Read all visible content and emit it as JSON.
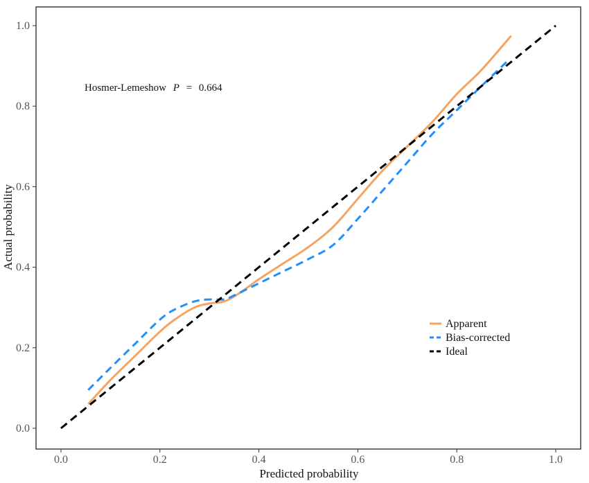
{
  "chart_data": {
    "type": "line",
    "xlabel": "Predicted probability",
    "ylabel": "Actual probability",
    "xlim": [
      0,
      1
    ],
    "ylim": [
      0,
      1
    ],
    "xticks": [
      "0.0",
      "0.2",
      "0.4",
      "0.6",
      "0.8",
      "1.0"
    ],
    "yticks": [
      "0.0",
      "0.2",
      "0.4",
      "0.6",
      "0.8",
      "1.0"
    ],
    "grid": false,
    "legend_position": "bottom-right",
    "annotation": {
      "prefix": "Hosmer-Lemeshow",
      "symbol": "P",
      "equals": "=",
      "value": "0.664"
    },
    "series": [
      {
        "name": "Apparent",
        "color": "#F4A460",
        "dash": "solid",
        "x": [
          0.055,
          0.1,
          0.15,
          0.2,
          0.23,
          0.27,
          0.3,
          0.33,
          0.36,
          0.4,
          0.45,
          0.5,
          0.55,
          0.6,
          0.65,
          0.7,
          0.75,
          0.8,
          0.85,
          0.91
        ],
        "y": [
          0.06,
          0.12,
          0.18,
          0.24,
          0.27,
          0.3,
          0.31,
          0.315,
          0.335,
          0.37,
          0.41,
          0.45,
          0.5,
          0.57,
          0.64,
          0.7,
          0.76,
          0.83,
          0.89,
          0.975
        ]
      },
      {
        "name": "Bias-corrected",
        "color": "#1E90FF",
        "dash": "dashed",
        "x": [
          0.055,
          0.1,
          0.15,
          0.2,
          0.23,
          0.27,
          0.3,
          0.33,
          0.35,
          0.4,
          0.45,
          0.5,
          0.55,
          0.6,
          0.65,
          0.7,
          0.75,
          0.8,
          0.85,
          0.905
        ],
        "y": [
          0.095,
          0.15,
          0.21,
          0.27,
          0.295,
          0.315,
          0.32,
          0.32,
          0.33,
          0.36,
          0.39,
          0.42,
          0.455,
          0.52,
          0.59,
          0.66,
          0.73,
          0.79,
          0.85,
          0.915
        ]
      },
      {
        "name": "Ideal",
        "color": "#000000",
        "dash": "dashed",
        "x": [
          0,
          1
        ],
        "y": [
          0,
          1
        ]
      }
    ]
  }
}
